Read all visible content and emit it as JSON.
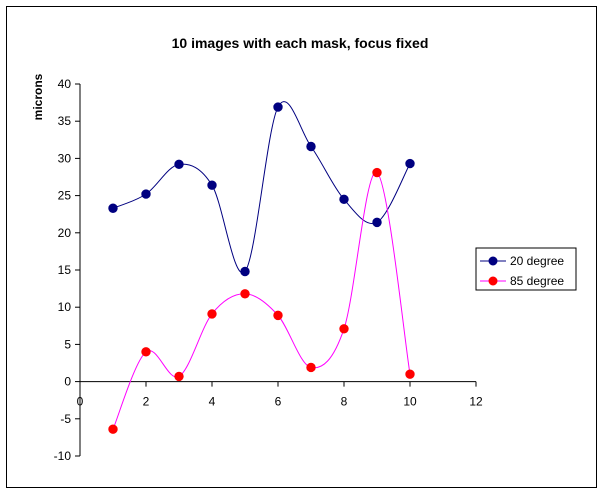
{
  "chart_data": {
    "type": "scatter",
    "title": "10 images with each mask, focus fixed",
    "xlabel": "",
    "ylabel": "microns",
    "xlim": [
      0,
      12
    ],
    "ylim": [
      -10,
      40
    ],
    "xticks": [
      0,
      2,
      4,
      6,
      8,
      10,
      12
    ],
    "yticks": [
      -10,
      -5,
      0,
      5,
      10,
      15,
      20,
      25,
      30,
      35,
      40
    ],
    "grid": false,
    "smooth_lines": true,
    "legend_position": "right",
    "series": [
      {
        "name": "20 degree",
        "color": "#000080",
        "marker": "circle",
        "x": [
          1,
          2,
          3,
          4,
          5,
          6,
          7,
          8,
          9,
          10
        ],
        "y": [
          23.3,
          25.2,
          29.2,
          26.4,
          14.8,
          36.9,
          31.6,
          24.5,
          21.4,
          29.3
        ]
      },
      {
        "name": "85 degree",
        "color": "#FF00FF",
        "marker_color": "#FF0000",
        "marker": "circle",
        "x": [
          1,
          2,
          3,
          4,
          5,
          6,
          7,
          8,
          9,
          10
        ],
        "y": [
          -6.4,
          4.0,
          0.7,
          9.1,
          11.8,
          8.9,
          1.9,
          7.1,
          28.1,
          1.0
        ]
      }
    ]
  }
}
